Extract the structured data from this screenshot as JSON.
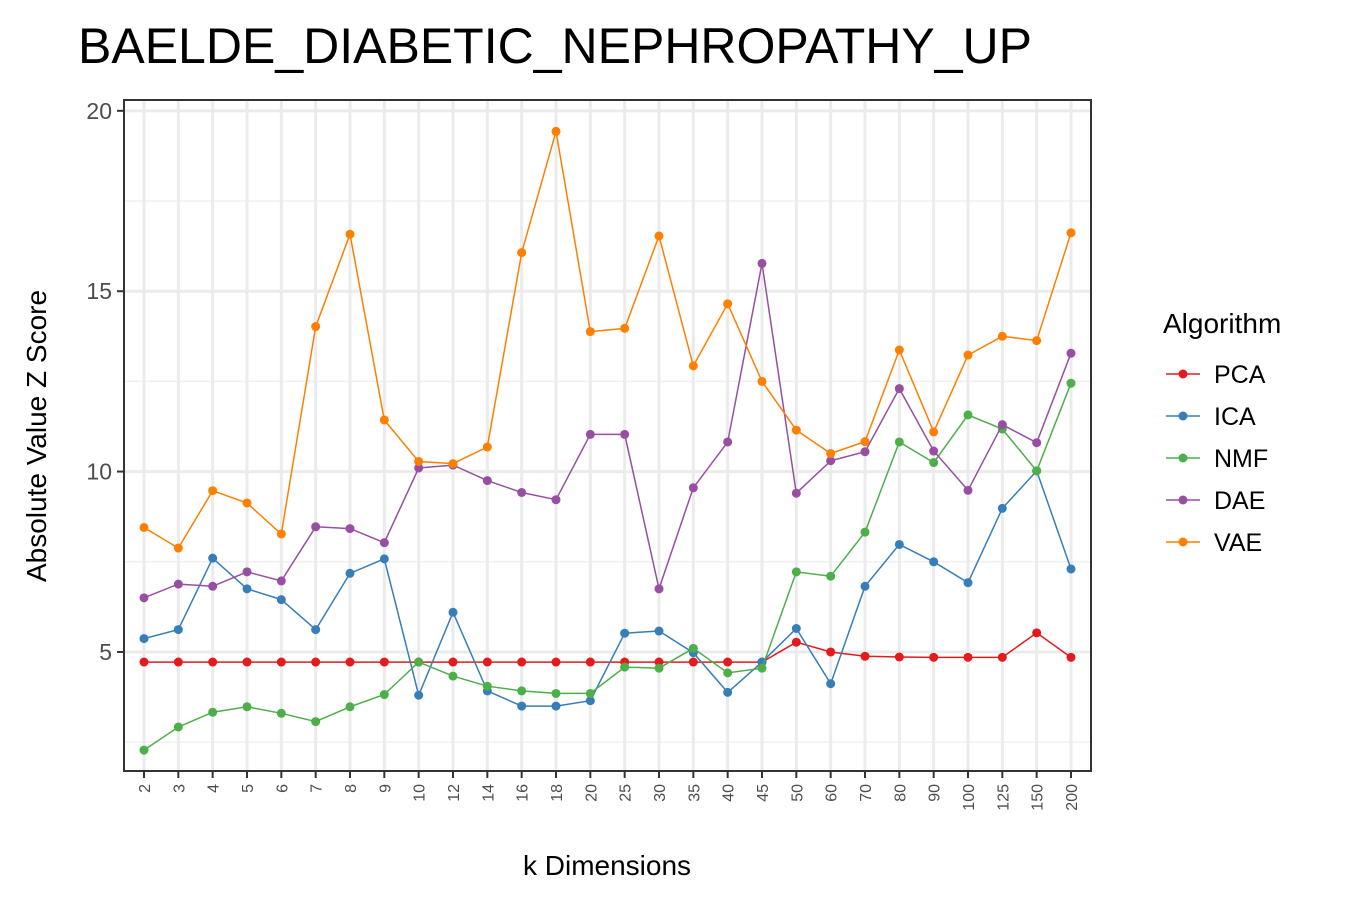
{
  "chart_data": {
    "type": "line",
    "title": "BAELDE_DIABETIC_NEPHROPATHY_UP",
    "xlabel": "k Dimensions",
    "ylabel": "Absolute Value Z Score",
    "categories": [
      "2",
      "3",
      "4",
      "5",
      "6",
      "7",
      "8",
      "9",
      "10",
      "12",
      "14",
      "16",
      "18",
      "20",
      "25",
      "30",
      "35",
      "40",
      "45",
      "50",
      "60",
      "70",
      "80",
      "90",
      "100",
      "125",
      "150",
      "200"
    ],
    "y_ticks": [
      "5",
      "10",
      "15",
      "20"
    ],
    "ylim": [
      1.7,
      20.3
    ],
    "grid": true,
    "legend": {
      "title": "Algorithm",
      "position": "right"
    },
    "series": [
      {
        "name": "PCA",
        "color": "#e41a1c",
        "values": [
          4.72,
          4.72,
          4.72,
          4.72,
          4.72,
          4.72,
          4.72,
          4.72,
          4.72,
          4.72,
          4.72,
          4.72,
          4.72,
          4.72,
          4.72,
          4.72,
          4.72,
          4.72,
          4.72,
          5.27,
          5.0,
          4.88,
          4.86,
          4.85,
          4.85,
          4.85,
          5.53,
          4.85
        ]
      },
      {
        "name": "ICA",
        "color": "#377eb8",
        "values": [
          5.37,
          5.62,
          7.6,
          6.75,
          6.45,
          5.62,
          7.18,
          7.58,
          3.8,
          6.1,
          3.92,
          3.5,
          3.5,
          3.65,
          5.52,
          5.58,
          4.98,
          3.88,
          4.72,
          5.65,
          4.12,
          6.82,
          7.98,
          7.5,
          6.92,
          8.98,
          10.02,
          7.3
        ]
      },
      {
        "name": "NMF",
        "color": "#4daf4a",
        "values": [
          2.28,
          2.92,
          3.33,
          3.48,
          3.3,
          3.07,
          3.48,
          3.82,
          4.72,
          4.33,
          4.05,
          3.92,
          3.85,
          3.85,
          4.58,
          4.55,
          5.1,
          4.42,
          4.55,
          7.22,
          7.1,
          8.32,
          10.82,
          10.25,
          11.57,
          11.18,
          10.02,
          12.45
        ]
      },
      {
        "name": "DAE",
        "color": "#984ea3",
        "values": [
          6.5,
          6.88,
          6.82,
          7.22,
          6.97,
          8.47,
          8.42,
          8.03,
          10.1,
          10.18,
          9.75,
          9.42,
          9.22,
          11.03,
          11.03,
          6.75,
          9.55,
          10.82,
          15.77,
          9.4,
          10.3,
          10.55,
          12.3,
          10.57,
          9.48,
          11.3,
          10.8,
          13.28
        ]
      },
      {
        "name": "VAE",
        "color": "#ff7f00",
        "values": [
          8.45,
          7.88,
          9.47,
          9.13,
          8.27,
          14.02,
          16.58,
          11.43,
          10.28,
          10.22,
          10.68,
          16.07,
          19.43,
          13.88,
          13.97,
          16.53,
          12.93,
          14.65,
          12.5,
          11.15,
          10.5,
          10.83,
          13.37,
          11.1,
          13.23,
          13.75,
          13.63,
          16.62
        ]
      }
    ]
  }
}
